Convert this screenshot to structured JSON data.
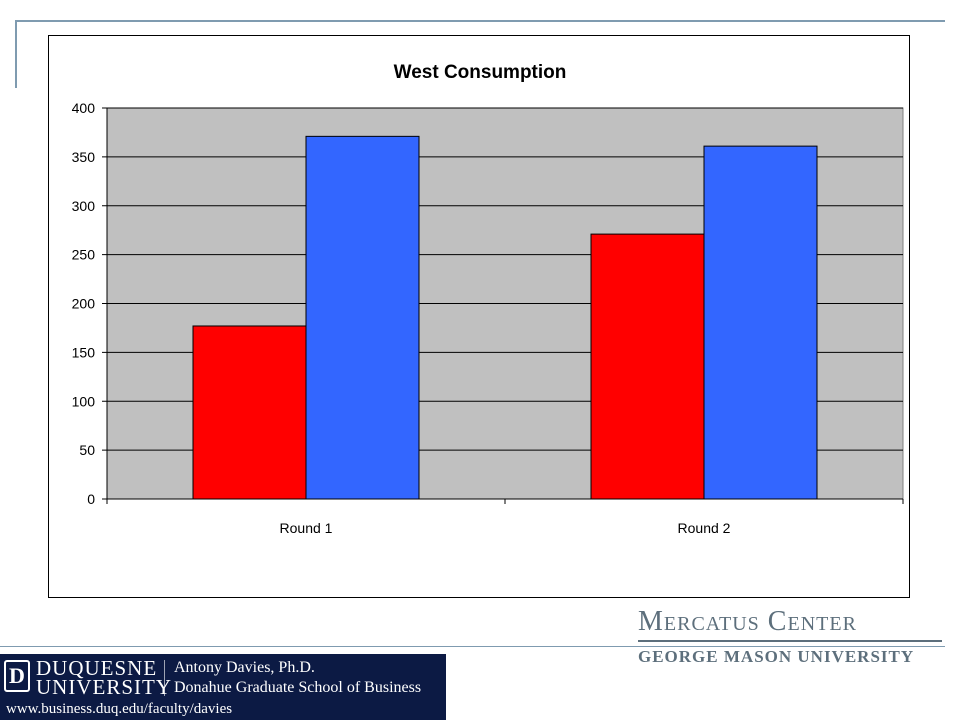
{
  "chart_data": {
    "type": "bar",
    "title": "West Consumption",
    "categories": [
      "Round 1",
      "Round 2"
    ],
    "series": [
      {
        "values": [
          177,
          271
        ],
        "color": "#ff0000"
      },
      {
        "values": [
          371,
          361
        ],
        "color": "#3366ff"
      }
    ],
    "y_ticks": [
      "400",
      "350",
      "300",
      "250",
      "200",
      "150",
      "100",
      "50",
      "0"
    ],
    "ylim": [
      0,
      400
    ],
    "grid": true,
    "legend": "none",
    "plot_background": "#c0c0c0"
  },
  "branding": {
    "mercatus_name": "Mercatus Center",
    "mercatus_sub": "GEORGE MASON UNIVERSITY",
    "duquesne_line1": "DUQUESNE",
    "duquesne_line2": "UNIVERSITY",
    "duquesne_logo_letter": "D",
    "person_name": "Antony Davies, Ph.D.",
    "person_school": "Donahue Graduate School of Business",
    "url": "www.business.duq.edu/faculty/davies"
  }
}
